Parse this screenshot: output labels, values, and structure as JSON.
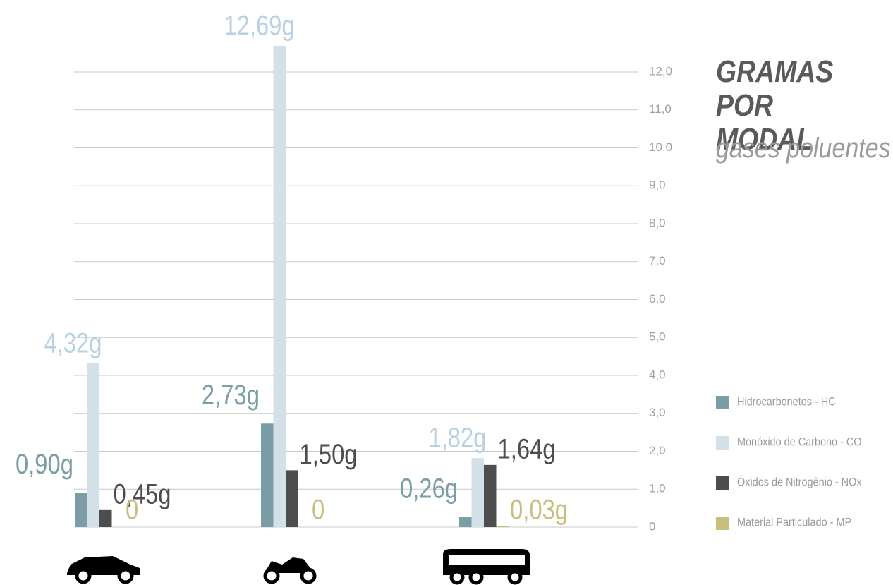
{
  "chart_data": {
    "type": "bar",
    "title": "GRAMAS POR MODAL",
    "subtitle": "gases poluentes",
    "categories": [
      null,
      null,
      null
    ],
    "series": [
      {
        "name": "Hidrocarbonetos - HC",
        "color": "#7b9ea6",
        "values": [
          0.9,
          2.73,
          0.26
        ],
        "value_labels": [
          "0,90g",
          "2,73g",
          "0,26g"
        ]
      },
      {
        "name": "Monóxido de Carbono - CO",
        "color": "#d3e0e8",
        "values": [
          4.32,
          12.69,
          1.82
        ],
        "value_labels": [
          "4,32g",
          "12,69g",
          "1,82g"
        ]
      },
      {
        "name": "Óxidos de Nitrogênio - NOx",
        "color": "#4d4d4d",
        "values": [
          0.45,
          1.5,
          1.64
        ],
        "value_labels": [
          "0,45g",
          "1,50g",
          "1,64g"
        ]
      },
      {
        "name": "Material Particulado - MP",
        "color": "#c8bf7f",
        "values": [
          0,
          0,
          0.03
        ],
        "value_labels": [
          "0",
          "0",
          "0,03g"
        ]
      }
    ],
    "ylim": [
      0,
      13
    ],
    "yticks": [
      0,
      {
        "value": 1,
        "label": "1,0"
      },
      {
        "value": 2,
        "label": "2,0"
      },
      {
        "value": 3,
        "label": "3,0"
      },
      {
        "value": 4,
        "label": "4,0"
      },
      {
        "value": 5,
        "label": "5,0"
      },
      {
        "value": 6,
        "label": "6,0"
      },
      {
        "value": 7,
        "label": "7,0"
      },
      {
        "value": 8,
        "label": "8,0"
      },
      {
        "value": 9,
        "label": "9,0"
      },
      {
        "value": 10,
        "label": "10,0"
      },
      {
        "value": 11,
        "label": "11,0"
      },
      {
        "value": 12,
        "label": "12,0"
      }
    ],
    "grid": true,
    "legend": "right"
  }
}
